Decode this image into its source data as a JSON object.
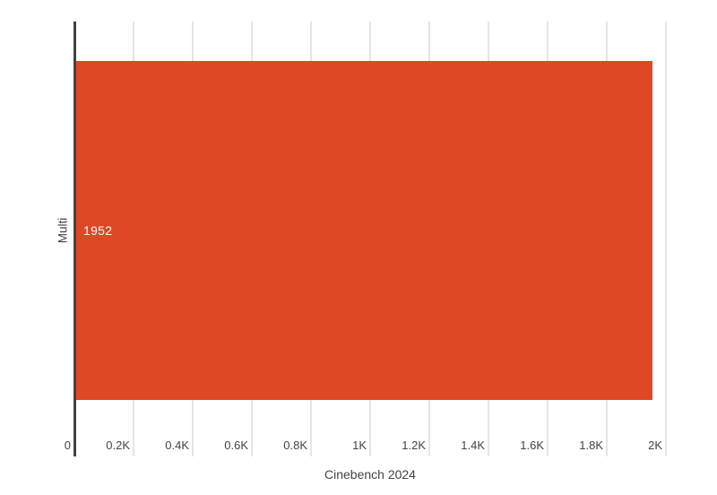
{
  "chart_data": {
    "type": "bar",
    "orientation": "horizontal",
    "title": "",
    "xlabel": "Cinebench 2024",
    "ylabel": "",
    "categories": [
      "Multi"
    ],
    "series": [
      {
        "name": "Cinebench 2024 Multi",
        "values": [
          1952
        ]
      }
    ],
    "values": [
      1952
    ],
    "value_labels": [
      "1952"
    ],
    "xlim": [
      0,
      2000
    ],
    "xticks": [
      0,
      200,
      400,
      600,
      800,
      1000,
      1200,
      1400,
      1600,
      1800,
      2000
    ],
    "xtick_labels": [
      "0",
      "0.2K",
      "0.4K",
      "0.6K",
      "0.8K",
      "1K",
      "1.2K",
      "1.4K",
      "1.6K",
      "1.8K",
      "2K"
    ],
    "grid": "vertical-only",
    "legend": "none",
    "colors": {
      "bar": "#e04724",
      "grid": "#e5e5e5",
      "axis": "#424242",
      "text": "#444444",
      "value_label": "#ffffff",
      "background": "#ffffff"
    }
  }
}
